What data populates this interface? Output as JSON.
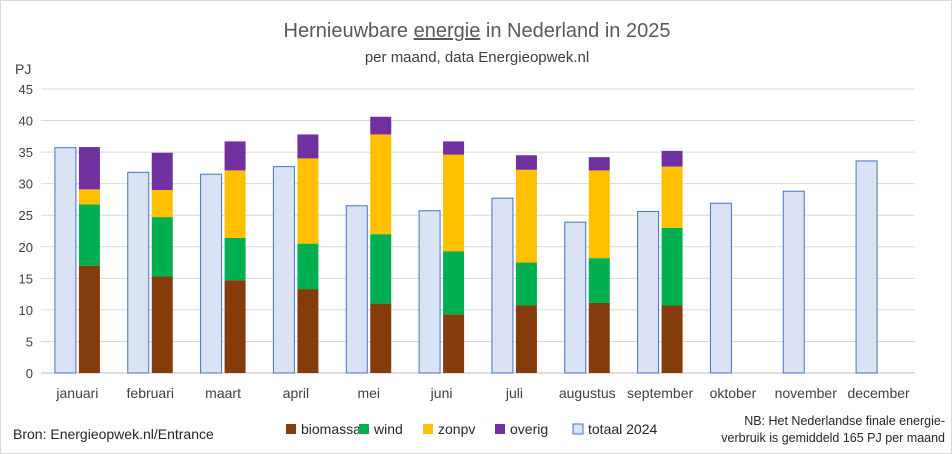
{
  "chart_data": {
    "type": "bar",
    "title_pre": "Hernieuwbare ",
    "title_underlined": "energie",
    "title_post": " in Nederland in 2025",
    "subtitle": "per maand, data Energieopwek.nl",
    "ylabel": "PJ",
    "ylim": [
      0,
      45
    ],
    "yticks": [
      0,
      5,
      10,
      15,
      20,
      25,
      30,
      35,
      40,
      45
    ],
    "grid": true,
    "categories": [
      "januari",
      "februari",
      "maart",
      "april",
      "mei",
      "juni",
      "juli",
      "augustus",
      "september",
      "oktober",
      "november",
      "december"
    ],
    "stacked_series": [
      {
        "name": "biomassa",
        "color": "#843c0c",
        "values": [
          17.0,
          15.3,
          14.7,
          13.3,
          11.0,
          9.3,
          10.7,
          11.1,
          10.7,
          null,
          null,
          null
        ]
      },
      {
        "name": "wind",
        "color": "#00b050",
        "values": [
          9.7,
          9.4,
          6.7,
          7.2,
          11.0,
          10.0,
          6.8,
          7.1,
          12.3,
          null,
          null,
          null
        ]
      },
      {
        "name": "zonpv",
        "color": "#ffc000",
        "values": [
          2.4,
          4.3,
          10.7,
          13.5,
          15.8,
          15.3,
          14.7,
          13.9,
          9.7,
          null,
          null,
          null
        ]
      },
      {
        "name": "overig",
        "color": "#7030a0",
        "values": [
          6.7,
          5.9,
          4.6,
          3.8,
          2.8,
          2.1,
          2.3,
          2.1,
          2.5,
          null,
          null,
          null
        ]
      }
    ],
    "comparison_series": {
      "name": "totaal 2024",
      "fill": "#dae3f3",
      "stroke": "#4472c4",
      "values": [
        35.7,
        31.8,
        31.5,
        32.7,
        26.5,
        25.7,
        27.7,
        23.9,
        25.6,
        26.9,
        28.8,
        33.6
      ]
    },
    "legend_position": "bottom"
  },
  "footer": {
    "source": "Bron: Energieopwek.nl/Entrance",
    "note_line1": "NB: Het Nederlandse finale energie-",
    "note_line2": "verbruik is gemiddeld 165 PJ per maand"
  }
}
